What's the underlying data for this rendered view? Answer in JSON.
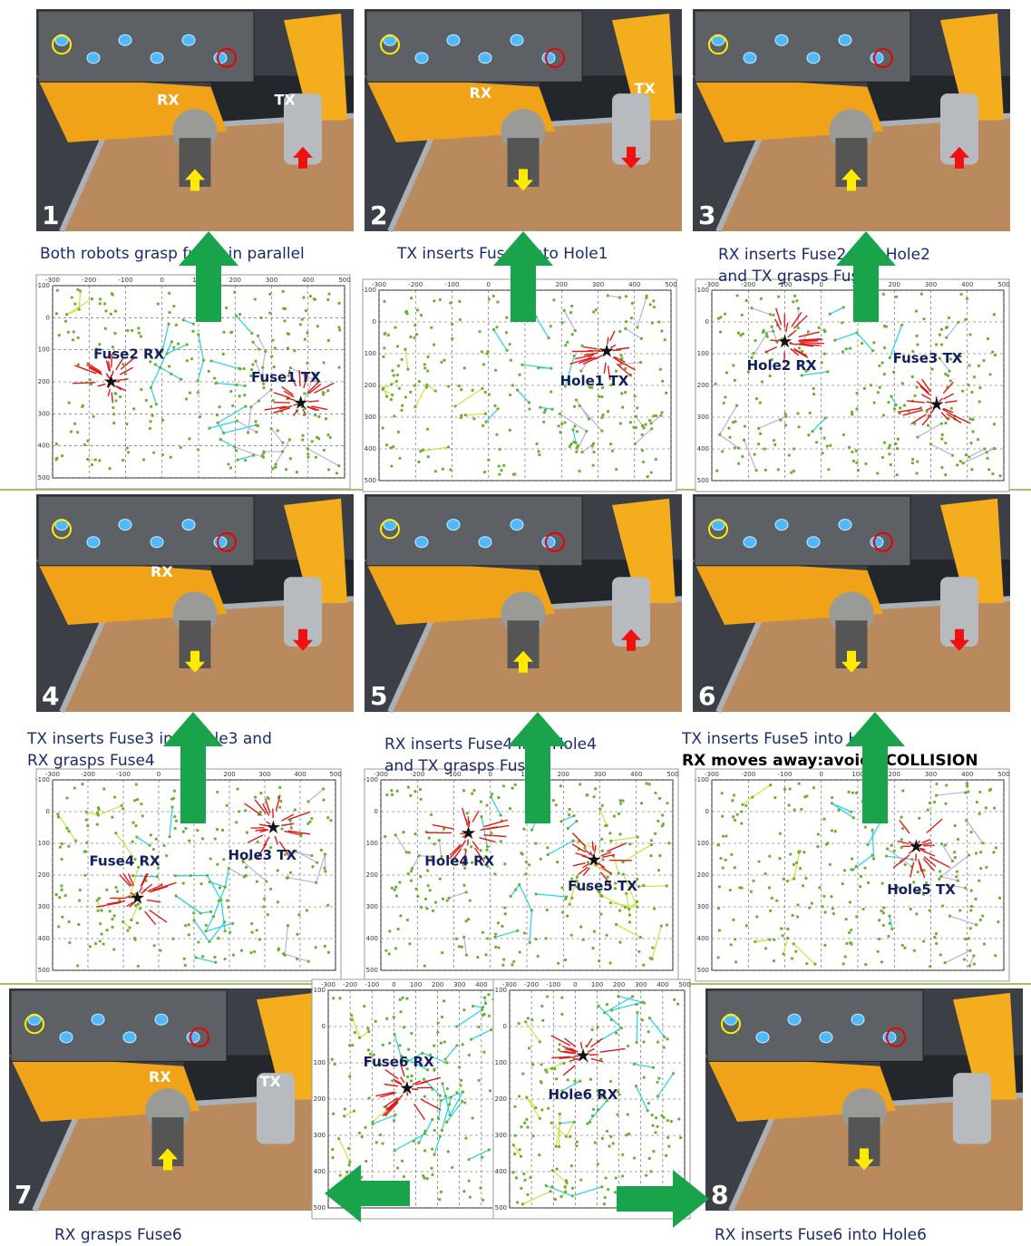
{
  "panels": [
    {
      "number": "1",
      "photo_labels": [
        "RX",
        "TX"
      ],
      "caption": [
        "Both robots grasp fuses in parallel"
      ],
      "plot_labels": [
        "Fuse2 RX",
        "Fuse1 TX"
      ]
    },
    {
      "number": "2",
      "photo_labels": [
        "RX",
        "TX"
      ],
      "caption": [
        "TX inserts Fuse1 into Hole1"
      ],
      "plot_labels": [
        "Hole1 TX"
      ]
    },
    {
      "number": "3",
      "photo_labels": [],
      "caption": [
        "RX inserts Fuse2 into Hole2",
        "and TX grasps Fuse3"
      ],
      "plot_labels": [
        "Hole2 RX",
        "Fuse3 TX"
      ]
    },
    {
      "number": "4",
      "photo_labels": [
        "RX"
      ],
      "caption": [
        "TX inserts Fuse3 into Hole3 and",
        "RX grasps Fuse4"
      ],
      "plot_labels": [
        "Fuse4 RX",
        "Hole3 TX"
      ]
    },
    {
      "number": "5",
      "photo_labels": [],
      "caption": [
        "RX inserts Fuse4 into Hole4",
        "and TX grasps Fuse5"
      ],
      "plot_labels": [
        "Hole4 RX",
        "Fuse5 TX"
      ]
    },
    {
      "number": "6",
      "photo_labels": [],
      "caption": [
        "TX inserts Fuse5 into Hole5;",
        "RX moves away:avoids COLLISION"
      ],
      "plot_labels": [
        "Hole5 TX"
      ]
    },
    {
      "number": "7",
      "photo_labels": [
        "RX",
        "TX"
      ],
      "caption": [
        "RX grasps Fuse6"
      ],
      "plot_labels": [
        "Fuse6 RX"
      ]
    },
    {
      "number": "8",
      "photo_labels": [],
      "caption": [
        "RX inserts Fuse6 into Hole6"
      ],
      "plot_labels": [
        "Hole6 RX"
      ]
    }
  ],
  "plot_axis": {
    "x_ticks": [
      "-300",
      "-200",
      "-100",
      "0",
      "100",
      "200",
      "300",
      "400",
      "500"
    ],
    "y_ticks": [
      "-100",
      "0",
      "100",
      "200",
      "300",
      "400",
      "500"
    ]
  }
}
